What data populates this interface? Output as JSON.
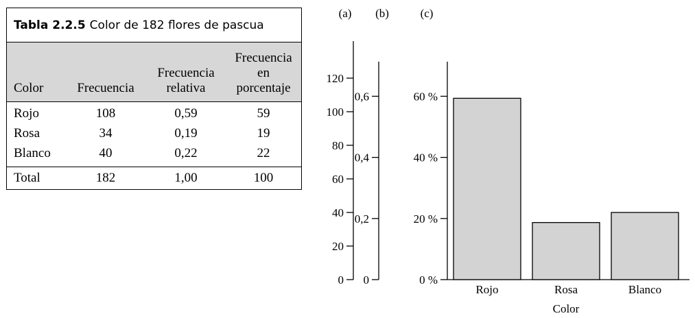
{
  "table": {
    "caption_number": "Tabla 2.2.5",
    "caption_text": "Color de 182 flores de pascua",
    "headers": [
      "Color",
      "Frecuencia",
      "Frecuencia relativa",
      "Frecuencia en porcentaje"
    ],
    "rows": [
      [
        "Rojo",
        "108",
        "0,59",
        "59"
      ],
      [
        "Rosa",
        "34",
        "0,19",
        "19"
      ],
      [
        "Blanco",
        "40",
        "0,22",
        "22"
      ]
    ],
    "total": [
      "Total",
      "182",
      "1,00",
      "100"
    ]
  },
  "chart_data": {
    "type": "bar",
    "categories": [
      "Rojo",
      "Rosa",
      "Blanco"
    ],
    "values": [
      108,
      34,
      40
    ],
    "xlabel": "Color",
    "axes": [
      {
        "label": "(a)",
        "ticks": [
          "0",
          "20",
          "40",
          "60",
          "80",
          "100",
          "120"
        ],
        "range": [
          0,
          120
        ]
      },
      {
        "label": "(b)",
        "ticks": [
          "0",
          "0,2",
          "0,4",
          "0,6"
        ],
        "range": [
          0,
          0.6
        ]
      },
      {
        "label": "(c)",
        "ticks": [
          "0 %",
          "20 %",
          "40 %",
          "60 %"
        ],
        "range": [
          0,
          60
        ]
      }
    ],
    "bar_color": "#d3d3d3",
    "grid": false,
    "total": 182
  }
}
